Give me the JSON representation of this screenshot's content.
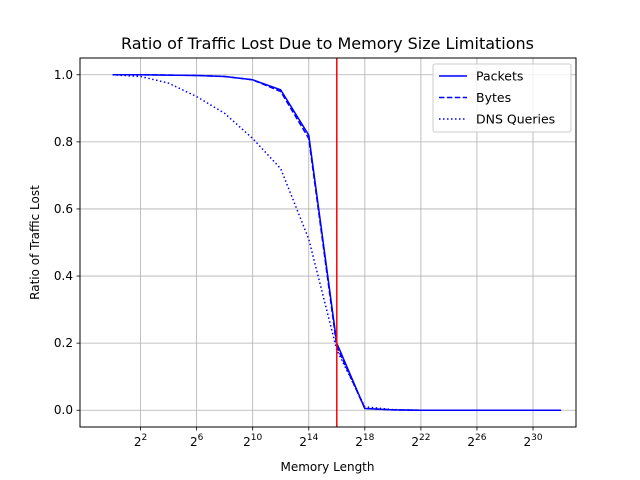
{
  "chart_data": {
    "type": "line",
    "title": "Ratio of Traffic Lost Due to Memory Size Limitations",
    "xlabel": "Memory Length",
    "ylabel": "Ratio of Traffic Lost",
    "x_scale": "log2",
    "xlim": [
      0.2,
      9000000000
    ],
    "ylim": [
      -0.05,
      1.05
    ],
    "x_ticks": [
      {
        "value": 4,
        "base": "2",
        "exp": "2"
      },
      {
        "value": 64,
        "base": "2",
        "exp": "6"
      },
      {
        "value": 1024,
        "base": "2",
        "exp": "10"
      },
      {
        "value": 16384,
        "base": "2",
        "exp": "14"
      },
      {
        "value": 262144,
        "base": "2",
        "exp": "18"
      },
      {
        "value": 4194304,
        "base": "2",
        "exp": "22"
      },
      {
        "value": 67108864,
        "base": "2",
        "exp": "26"
      },
      {
        "value": 1073741824,
        "base": "2",
        "exp": "30"
      }
    ],
    "y_ticks": [
      "0.0",
      "0.2",
      "0.4",
      "0.6",
      "0.8",
      "1.0"
    ],
    "grid": true,
    "legend_position": "top-right",
    "vline": {
      "x": 65536,
      "color": "#ff0000"
    },
    "x": [
      1,
      4,
      16,
      64,
      256,
      1024,
      4096,
      16384,
      65536,
      262144,
      1048576,
      4194304,
      16777216,
      67108864,
      268435456,
      1073741824,
      4294967296
    ],
    "series": [
      {
        "name": "Packets",
        "style": "solid",
        "color": "#0000ff",
        "values": [
          1.0,
          1.0,
          0.999,
          0.998,
          0.995,
          0.985,
          0.955,
          0.82,
          0.2,
          0.005,
          0.001,
          0.0,
          0.0,
          0.0,
          0.0,
          0.0,
          0.0
        ]
      },
      {
        "name": "Bytes",
        "style": "dashed",
        "color": "#0000ff",
        "values": [
          1.0,
          1.0,
          0.999,
          0.998,
          0.995,
          0.985,
          0.95,
          0.81,
          0.19,
          0.005,
          0.001,
          0.0,
          0.0,
          0.0,
          0.0,
          0.0,
          0.0
        ]
      },
      {
        "name": "DNS Queries",
        "style": "dotted",
        "color": "#0000ff",
        "values": [
          1.0,
          0.995,
          0.975,
          0.935,
          0.885,
          0.81,
          0.72,
          0.51,
          0.18,
          0.01,
          0.002,
          0.0,
          0.0,
          0.0,
          0.0,
          0.0,
          0.0
        ]
      }
    ]
  }
}
